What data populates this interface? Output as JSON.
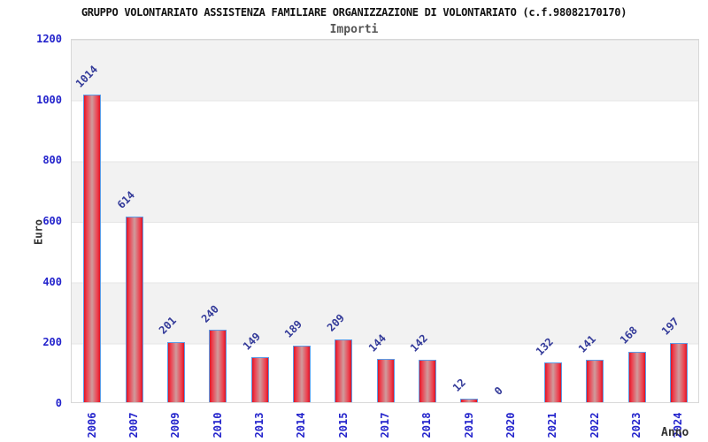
{
  "header": {
    "title": "GRUPPO VOLONTARIATO ASSISTENZA FAMILIARE ORGANIZZAZIONE DI VOLONTARIATO (c.f.98082170170)",
    "subtitle": "Importi"
  },
  "chart_data": {
    "type": "bar",
    "title": "GRUPPO VOLONTARIATO ASSISTENZA FAMILIARE ORGANIZZAZIONE DI VOLONTARIATO (c.f.98082170170)",
    "subtitle": "Importi",
    "xlabel": "Anno",
    "ylabel": "Euro",
    "categories": [
      "2006",
      "2007",
      "2009",
      "2010",
      "2013",
      "2014",
      "2015",
      "2017",
      "2018",
      "2019",
      "2020",
      "2021",
      "2022",
      "2023",
      "2024"
    ],
    "values": [
      1014,
      614,
      201,
      240,
      149,
      189,
      209,
      144,
      142,
      12,
      0,
      132,
      141,
      168,
      197
    ],
    "ylim": [
      0,
      1200
    ],
    "yticks": [
      0,
      200,
      400,
      600,
      800,
      1000,
      1200
    ],
    "grid": "horizontal-bands-alternating",
    "legend_position": "none",
    "bar_value_labels_rotation_deg": -45,
    "x_tick_rotation_deg": -90,
    "colors": {
      "bar_edge_red": "#dd1424",
      "bar_center_highlight": "#cf9b9d",
      "bar_border_blue": "#5d9ce6",
      "tick_label_blue": "#2323cc",
      "value_label_navy": "#333a99",
      "band_gray": "#f2f2f2",
      "band_white": "#ffffff",
      "plot_border_gray": "#d8d8d8",
      "title_black": "#111111",
      "subtitle_gray": "#555555",
      "axis_title_gray": "#333333"
    }
  }
}
